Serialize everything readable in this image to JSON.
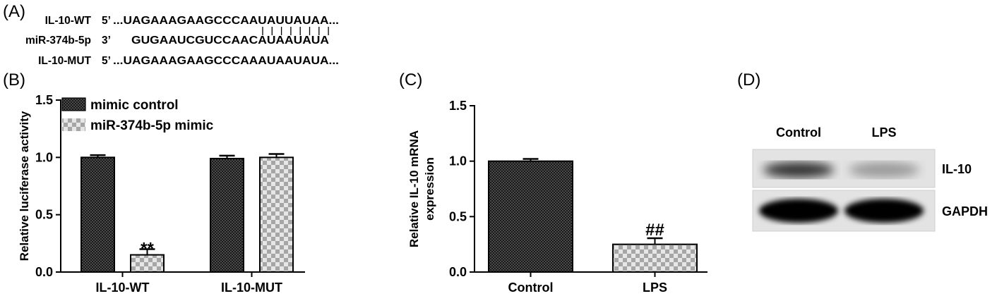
{
  "panel_a": {
    "label": "(A)",
    "rows": [
      {
        "name": "IL-10-WT",
        "prime": "5’",
        "seq": "...UAGAAAGAAGCCCAAUAUUAUAA..."
      },
      {
        "name": "miR-374b-5p",
        "prime": "3’",
        "seq": "GUGAAUCGUCCAACAUAAUAUA"
      },
      {
        "name": "IL-10-MUT",
        "prime": "5’",
        "seq": "...UAGAAAGAAGCCCAAAUAAUAUA..."
      }
    ]
  },
  "panel_b_label": "(B)",
  "panel_c_label": "(C)",
  "panel_d_label": "(D)",
  "colors": {
    "dark_bar": "#1a1a1a",
    "light_bar": "#aaaaaa",
    "axis": "#000000"
  },
  "chart_data": [
    {
      "type": "bar",
      "panel": "B",
      "categories": [
        "IL-10-WT",
        "IL-10-MUT"
      ],
      "series": [
        {
          "name": "mimic control",
          "values": [
            1.0,
            0.99
          ],
          "errors": [
            0.02,
            0.025
          ],
          "pattern": "dark-checker"
        },
        {
          "name": "miR-374b-5p mimic",
          "values": [
            0.15,
            1.0
          ],
          "errors": [
            0.05,
            0.03
          ],
          "pattern": "light-checker"
        }
      ],
      "annotations": [
        {
          "category": "IL-10-WT",
          "series": 1,
          "text": "**"
        }
      ],
      "xlabel": "",
      "ylabel": "Relative luciferase activity",
      "ylim": [
        0,
        1.5
      ],
      "yticks": [
        "0.0",
        "0.5",
        "1.0",
        "1.5"
      ],
      "legend": "top-left"
    },
    {
      "type": "bar",
      "panel": "C",
      "categories": [
        "Control",
        "LPS"
      ],
      "values": [
        1.0,
        0.25
      ],
      "errors": [
        0.02,
        0.055
      ],
      "patterns": [
        "dark-checker",
        "light-checker"
      ],
      "annotations": [
        {
          "category": "LPS",
          "text": "##"
        }
      ],
      "xlabel": "",
      "ylabel": "Relative IL-10 mRNA expression",
      "ylabel_lines": [
        "Relative IL-10 mRNA",
        "expression"
      ],
      "ylim": [
        0,
        1.5
      ],
      "yticks": [
        "0.0",
        "0.5",
        "1.0",
        "1.5"
      ]
    }
  ],
  "blot": {
    "lanes": [
      "Control",
      "LPS"
    ],
    "bands": [
      {
        "name": "IL-10",
        "intensity": [
          0.75,
          0.2
        ]
      },
      {
        "name": "GAPDH",
        "intensity": [
          1.0,
          1.0
        ]
      }
    ]
  }
}
